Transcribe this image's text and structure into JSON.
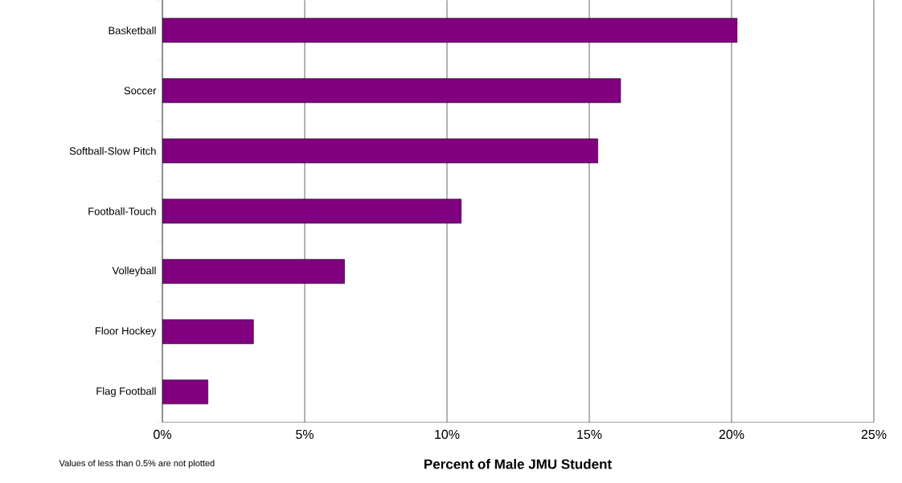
{
  "chart_data": {
    "type": "bar",
    "orientation": "horizontal",
    "xlabel": "Percent of Male JMU Student",
    "categories": [
      "Basketball",
      "Soccer",
      "Softball-Slow Pitch",
      "Football-Touch",
      "Volleyball",
      "Floor Hockey",
      "Flag Football"
    ],
    "values": [
      20.2,
      16.1,
      15.3,
      10.5,
      6.4,
      3.2,
      1.6
    ],
    "color": "#800080",
    "xlim": [
      0,
      25
    ],
    "xticks": [
      {
        "value": 0,
        "label": "0%"
      },
      {
        "value": 5,
        "label": "5%"
      },
      {
        "value": 10,
        "label": "10%"
      },
      {
        "value": 15,
        "label": "15%"
      },
      {
        "value": 20,
        "label": "20%"
      },
      {
        "value": 25,
        "label": "25%"
      }
    ],
    "grid": "x",
    "annotations": [
      "Values of less than 0.5% are not plotted"
    ]
  }
}
